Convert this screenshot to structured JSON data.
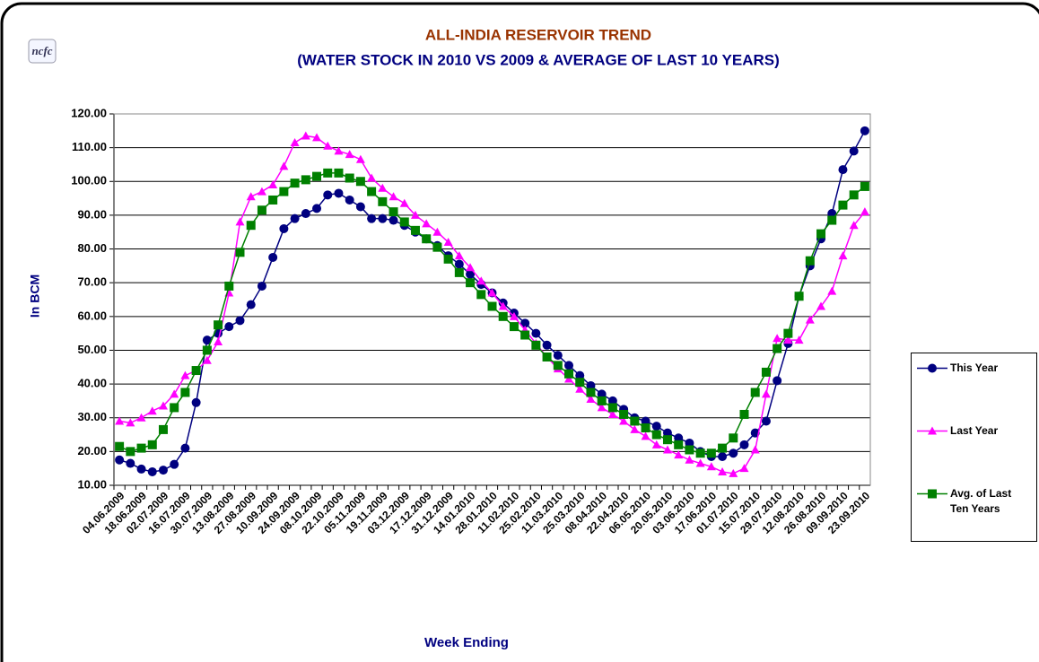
{
  "chart_data": {
    "type": "line",
    "logo": "ncfc",
    "title": "ALL-INDIA RESERVOIR TREND",
    "subtitle": "(WATER STOCK IN 2010 VS 2009 & AVERAGE OF LAST 10 YEARS)",
    "y_label": "In BCM",
    "x_label": "Week Ending",
    "categories": [
      "04.06.2009",
      null,
      "18.06.2009",
      null,
      "02.07.2009",
      null,
      "16.07.2009",
      null,
      "30.07.2009",
      null,
      "13.08.2009",
      null,
      "27.08.2009",
      null,
      "10.09.2009",
      null,
      "24.09.2009",
      null,
      "08.10.2009",
      null,
      "22.10.2009",
      null,
      "05.11.2009",
      null,
      "19.11.2009",
      null,
      "03.12.2009",
      null,
      "17.12.2009",
      null,
      "31.12.2009",
      null,
      "14.01.2010",
      null,
      "28.01.2010",
      null,
      "11.02.2010",
      null,
      "25.02.2010",
      null,
      "11.03.2010",
      null,
      "25.03.2010",
      null,
      "08.04.2010",
      null,
      "22.04.2010",
      null,
      "06.05.2010",
      null,
      "20.05.2010",
      null,
      "03.06.2010",
      null,
      "17.06.2010",
      null,
      "01.07.2010",
      null,
      "15.07.2010",
      null,
      "29.07.2010",
      null,
      "12.08.2010",
      null,
      "26.08.2010",
      null,
      "09.09.2010",
      null,
      "23.09.2010"
    ],
    "series": [
      {
        "name": "This Year",
        "color": "#000080",
        "marker": "circle",
        "values": [
          17.5,
          16.5,
          14.8,
          14.0,
          14.5,
          16.2,
          21,
          34.5,
          53,
          55,
          57,
          58.8,
          63.5,
          69,
          77.5,
          86,
          89,
          90.5,
          92,
          96,
          96.5,
          94.5,
          92.5,
          89,
          89,
          88.5,
          87,
          85,
          83,
          81,
          78,
          75.5,
          72.5,
          69.5,
          67,
          64,
          61,
          58,
          55,
          51.5,
          48.5,
          45.5,
          42.5,
          39.5,
          37,
          35,
          32.5,
          30,
          29,
          27.5,
          25.5,
          24,
          22.5,
          20,
          18.5,
          18.5,
          19.5,
          22,
          25.5,
          29,
          41,
          52,
          66,
          75,
          83,
          90.5,
          103.5,
          109,
          115
        ]
      },
      {
        "name": "Last Year",
        "color": "#ff00ff",
        "marker": "triangle",
        "values": [
          29,
          28.5,
          30,
          32,
          33.5,
          37,
          42.5,
          44,
          47,
          52.5,
          67,
          88,
          95.5,
          97,
          99,
          104.5,
          111.5,
          113.5,
          113,
          110.5,
          109,
          108,
          106.5,
          101,
          98,
          95.5,
          93.5,
          90,
          87.5,
          85,
          82,
          78,
          74.5,
          70.5,
          67,
          63,
          60,
          56,
          52,
          48,
          44.5,
          41.5,
          38.5,
          35.5,
          33,
          31,
          29,
          26.5,
          24.5,
          22,
          20.5,
          19,
          17.5,
          16.5,
          15.5,
          14,
          13.5,
          15,
          20.5,
          37,
          53.5,
          53,
          53,
          59,
          63,
          67.5,
          78,
          87,
          91
        ]
      },
      {
        "name": "Avg. of Last Ten Years",
        "color": "#008000",
        "marker": "square",
        "values": [
          21.5,
          20,
          21,
          22,
          26.5,
          33,
          37.5,
          44,
          50,
          57.5,
          69,
          79,
          87,
          91.5,
          94.5,
          97,
          99.5,
          100.5,
          101.5,
          102.5,
          102.5,
          101,
          100,
          97,
          94,
          91,
          88,
          85.5,
          83,
          80.5,
          77,
          73,
          70,
          66.5,
          63,
          60,
          57,
          54.5,
          51.5,
          48,
          45.5,
          43,
          40.5,
          37.5,
          35,
          33,
          31,
          29,
          27,
          25,
          23.5,
          22,
          20.5,
          19.5,
          19.5,
          21,
          24,
          31,
          37.5,
          43.5,
          50.5,
          55,
          66,
          76.5,
          84.5,
          88.5,
          93,
          96,
          98.5
        ]
      }
    ],
    "ylim": [
      10,
      120
    ],
    "yticks": [
      {
        "value": 10,
        "label": "10.00"
      },
      {
        "value": 20,
        "label": "20.00"
      },
      {
        "value": 30,
        "label": "30.00"
      },
      {
        "value": 40,
        "label": "40.00"
      },
      {
        "value": 50,
        "label": "50.00"
      },
      {
        "value": 60,
        "label": "60.00"
      },
      {
        "value": 70,
        "label": "70.00"
      },
      {
        "value": 80,
        "label": "80.00"
      },
      {
        "value": 90,
        "label": "90.00"
      },
      {
        "value": 100,
        "label": "100.00"
      },
      {
        "value": 110,
        "label": "110.00"
      },
      {
        "value": 120,
        "label": "120.00"
      }
    ],
    "grid": true,
    "legend": "right"
  }
}
